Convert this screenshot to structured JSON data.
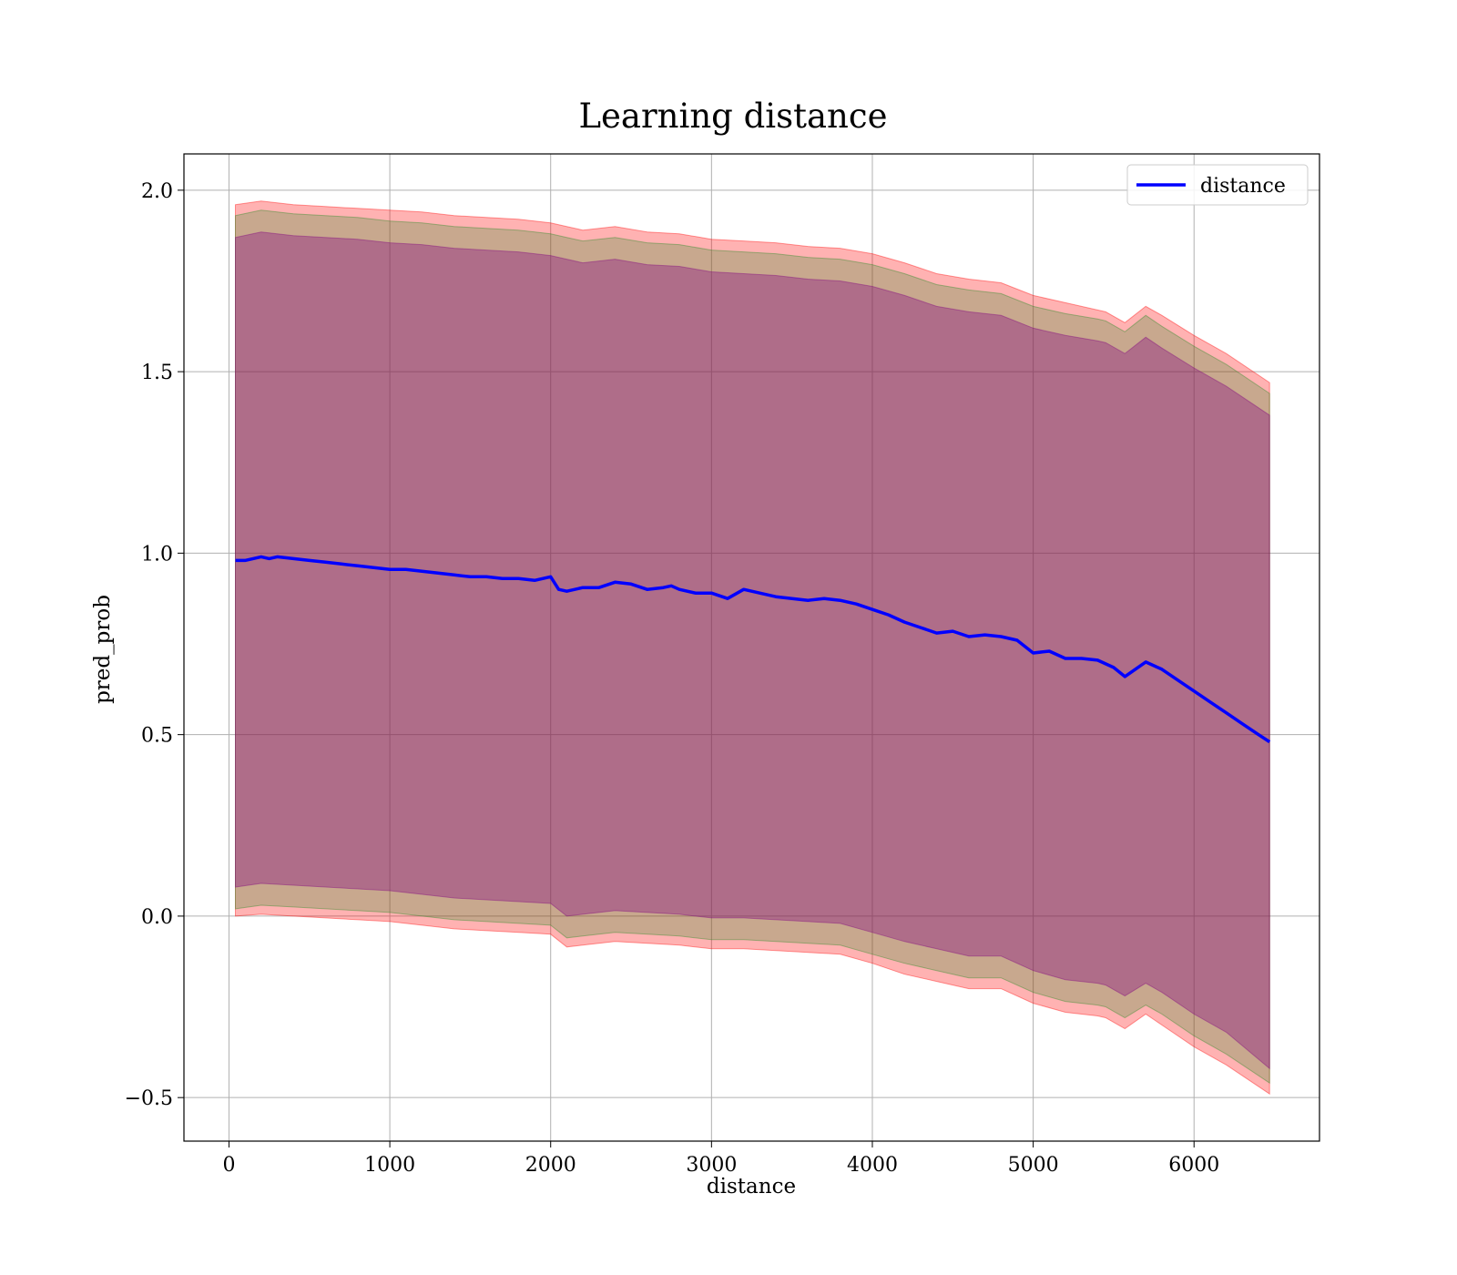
{
  "chart_data": {
    "type": "line",
    "title": "Learning distance",
    "xlabel": "distance",
    "ylabel": "pred_prob",
    "xlim": [
      -280,
      6780
    ],
    "ylim": [
      -0.62,
      2.1
    ],
    "xticks": [
      0,
      1000,
      2000,
      3000,
      4000,
      5000,
      6000
    ],
    "xtick_labels": [
      "0",
      "1000",
      "2000",
      "3000",
      "4000",
      "5000",
      "6000"
    ],
    "yticks": [
      -0.5,
      0.0,
      0.5,
      1.0,
      1.5,
      2.0
    ],
    "ytick_labels": [
      "−0.5",
      "0.0",
      "0.5",
      "1.0",
      "1.5",
      "2.0"
    ],
    "grid": true,
    "legend_position": "upper-right",
    "series": [
      {
        "name": "distance",
        "color": "#0000ff",
        "x": [
          40,
          100,
          200,
          250,
          300,
          400,
          500,
          600,
          700,
          800,
          900,
          1000,
          1100,
          1200,
          1300,
          1400,
          1500,
          1600,
          1700,
          1800,
          1900,
          2000,
          2050,
          2100,
          2200,
          2300,
          2400,
          2500,
          2600,
          2700,
          2750,
          2800,
          2900,
          3000,
          3100,
          3200,
          3300,
          3400,
          3500,
          3600,
          3700,
          3800,
          3900,
          4000,
          4100,
          4200,
          4300,
          4400,
          4500,
          4600,
          4700,
          4800,
          4900,
          5000,
          5100,
          5200,
          5300,
          5400,
          5450,
          5500,
          5570,
          5700,
          5800,
          5900,
          6000,
          6100,
          6200,
          6300,
          6400,
          6470
        ],
        "y": [
          0.98,
          0.98,
          0.99,
          0.985,
          0.99,
          0.985,
          0.98,
          0.975,
          0.97,
          0.965,
          0.96,
          0.955,
          0.955,
          0.95,
          0.945,
          0.94,
          0.935,
          0.935,
          0.93,
          0.93,
          0.925,
          0.935,
          0.9,
          0.895,
          0.905,
          0.905,
          0.92,
          0.915,
          0.9,
          0.905,
          0.91,
          0.9,
          0.89,
          0.89,
          0.875,
          0.9,
          0.89,
          0.88,
          0.875,
          0.87,
          0.875,
          0.87,
          0.86,
          0.845,
          0.83,
          0.81,
          0.795,
          0.78,
          0.785,
          0.77,
          0.775,
          0.77,
          0.76,
          0.725,
          0.73,
          0.71,
          0.71,
          0.705,
          0.695,
          0.685,
          0.66,
          0.7,
          0.68,
          0.65,
          0.62,
          0.59,
          0.56,
          0.53,
          0.5,
          0.48
        ]
      }
    ],
    "bands": [
      {
        "color": "#ff0000",
        "opacity": 0.3,
        "x": [
          40,
          200,
          400,
          600,
          800,
          1000,
          1200,
          1400,
          1600,
          1800,
          2000,
          2100,
          2200,
          2400,
          2600,
          2800,
          3000,
          3200,
          3400,
          3600,
          3800,
          4000,
          4200,
          4400,
          4600,
          4800,
          5000,
          5200,
          5400,
          5450,
          5570,
          5700,
          5800,
          6000,
          6200,
          6470
        ],
        "upper": [
          1.96,
          1.97,
          1.96,
          1.955,
          1.95,
          1.945,
          1.94,
          1.93,
          1.925,
          1.92,
          1.91,
          1.9,
          1.89,
          1.9,
          1.885,
          1.88,
          1.865,
          1.86,
          1.855,
          1.845,
          1.84,
          1.825,
          1.8,
          1.77,
          1.755,
          1.745,
          1.71,
          1.69,
          1.67,
          1.665,
          1.635,
          1.68,
          1.655,
          1.6,
          1.55,
          1.47
        ],
        "lower": [
          0.0,
          0.005,
          0.0,
          -0.005,
          -0.01,
          -0.015,
          -0.025,
          -0.035,
          -0.04,
          -0.045,
          -0.05,
          -0.085,
          -0.08,
          -0.07,
          -0.075,
          -0.08,
          -0.09,
          -0.09,
          -0.095,
          -0.1,
          -0.105,
          -0.13,
          -0.16,
          -0.18,
          -0.2,
          -0.2,
          -0.24,
          -0.265,
          -0.275,
          -0.28,
          -0.31,
          -0.27,
          -0.3,
          -0.36,
          -0.41,
          -0.49
        ]
      },
      {
        "color": "#228b22",
        "opacity": 0.25,
        "x": [
          40,
          200,
          400,
          600,
          800,
          1000,
          1200,
          1400,
          1600,
          1800,
          2000,
          2100,
          2200,
          2400,
          2600,
          2800,
          3000,
          3200,
          3400,
          3600,
          3800,
          4000,
          4200,
          4400,
          4600,
          4800,
          5000,
          5200,
          5400,
          5450,
          5570,
          5700,
          5800,
          6000,
          6200,
          6470
        ],
        "upper": [
          1.93,
          1.945,
          1.935,
          1.93,
          1.925,
          1.915,
          1.91,
          1.9,
          1.895,
          1.89,
          1.88,
          1.87,
          1.86,
          1.87,
          1.855,
          1.85,
          1.835,
          1.83,
          1.825,
          1.815,
          1.81,
          1.795,
          1.77,
          1.74,
          1.725,
          1.715,
          1.68,
          1.66,
          1.645,
          1.64,
          1.61,
          1.655,
          1.625,
          1.57,
          1.52,
          1.44
        ],
        "lower": [
          0.02,
          0.03,
          0.025,
          0.02,
          0.015,
          0.01,
          0.0,
          -0.01,
          -0.015,
          -0.02,
          -0.025,
          -0.06,
          -0.055,
          -0.045,
          -0.05,
          -0.055,
          -0.065,
          -0.065,
          -0.07,
          -0.075,
          -0.08,
          -0.105,
          -0.13,
          -0.15,
          -0.17,
          -0.17,
          -0.21,
          -0.235,
          -0.245,
          -0.25,
          -0.28,
          -0.245,
          -0.27,
          -0.33,
          -0.38,
          -0.46
        ]
      },
      {
        "color": "#800080",
        "opacity": 0.35,
        "x": [
          40,
          200,
          400,
          600,
          800,
          1000,
          1200,
          1400,
          1600,
          1800,
          2000,
          2100,
          2200,
          2400,
          2600,
          2800,
          3000,
          3200,
          3400,
          3600,
          3800,
          4000,
          4200,
          4400,
          4600,
          4800,
          5000,
          5200,
          5400,
          5450,
          5570,
          5700,
          5800,
          6000,
          6200,
          6470
        ],
        "upper": [
          1.87,
          1.885,
          1.875,
          1.87,
          1.865,
          1.855,
          1.85,
          1.84,
          1.835,
          1.83,
          1.82,
          1.81,
          1.8,
          1.81,
          1.795,
          1.79,
          1.775,
          1.77,
          1.765,
          1.755,
          1.75,
          1.735,
          1.71,
          1.68,
          1.665,
          1.655,
          1.62,
          1.6,
          1.585,
          1.58,
          1.55,
          1.595,
          1.565,
          1.51,
          1.46,
          1.38
        ],
        "lower": [
          0.08,
          0.09,
          0.085,
          0.08,
          0.075,
          0.07,
          0.06,
          0.05,
          0.045,
          0.04,
          0.035,
          0.0,
          0.005,
          0.015,
          0.01,
          0.005,
          -0.005,
          -0.005,
          -0.01,
          -0.015,
          -0.02,
          -0.045,
          -0.07,
          -0.09,
          -0.11,
          -0.11,
          -0.15,
          -0.175,
          -0.185,
          -0.19,
          -0.22,
          -0.185,
          -0.21,
          -0.27,
          -0.32,
          -0.42
        ]
      }
    ]
  }
}
